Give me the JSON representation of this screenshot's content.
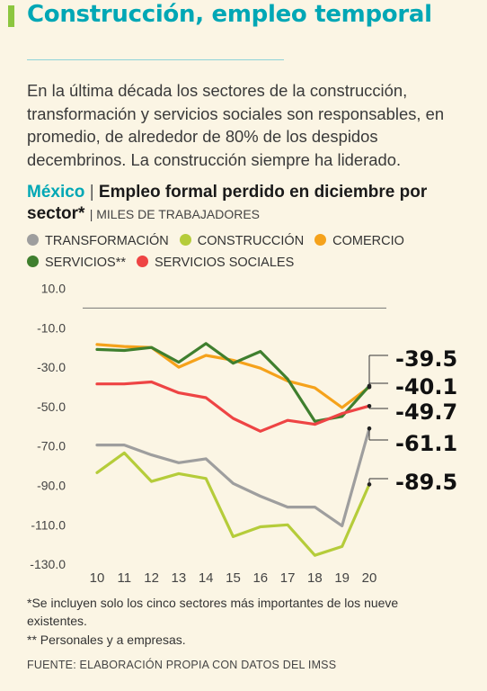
{
  "title": "Construcción, empleo temporal",
  "intro": "En la última década los sectores de la construcción, transformación y servicios sociales son responsables, en promedio, de alrededor de 80% de los despidos decembrinos. La construcción siempre ha liderado.",
  "chart_heading": {
    "country": "México",
    "separator": "|",
    "title": "Empleo formal perdido en diciembre por sector*",
    "units": "| MILES DE TRABAJADORES"
  },
  "chart_data": {
    "type": "line",
    "x": [
      "10",
      "11",
      "12",
      "13",
      "14",
      "15",
      "16",
      "17",
      "18",
      "19",
      "20"
    ],
    "ylim": [
      -130,
      10
    ],
    "yticks": [
      "10.0",
      "-10.0",
      "-30.0",
      "-50.0",
      "-70.0",
      "-90.0",
      "-110.0",
      "-130.0"
    ],
    "ytick_values": [
      10,
      -10,
      -30,
      -50,
      -70,
      -90,
      -110,
      -130
    ],
    "baseline_value": 0,
    "grid": false,
    "legend_position": "top",
    "series": [
      {
        "name": "TRANSFORMACIÓN",
        "color": "#9e9e9e",
        "values": [
          -69.5,
          -69.5,
          -74.5,
          -78.5,
          -76.5,
          -89,
          -95.5,
          -101,
          -101,
          -110.5,
          -61.1
        ]
      },
      {
        "name": "CONSTRUCCIÓN",
        "color": "#b5cc3a",
        "values": [
          -83.5,
          -73.5,
          -88,
          -84,
          -86.5,
          -116,
          -111,
          -110,
          -125.5,
          -121,
          -89.5
        ]
      },
      {
        "name": "COMERCIO",
        "color": "#f5a21b",
        "values": [
          -18.5,
          -19.5,
          -20,
          -30,
          -24,
          -26.5,
          -30.5,
          -37,
          -40.5,
          -50.5,
          -40.1
        ]
      },
      {
        "name": "SERVICIOS**",
        "color": "#3f7f2e",
        "values": [
          -21,
          -21.5,
          -20,
          -27.5,
          -18,
          -28,
          -22,
          -36,
          -57.5,
          -55,
          -39.5
        ]
      },
      {
        "name": "SERVICIOS SOCIALES",
        "color": "#ee4444",
        "values": [
          -38.5,
          -38.5,
          -37.5,
          -43,
          -45.5,
          -56,
          -62.5,
          -57,
          -59,
          -53.5,
          -49.7
        ]
      }
    ],
    "end_labels": [
      "-39.5",
      "-40.1",
      "-49.7",
      "-61.1",
      "-89.5"
    ]
  },
  "notes": [
    "*Se incluyen solo los cinco sectores más importantes de los nueve existentes.",
    "** Personales y a empresas."
  ],
  "source": "FUENTE: ELABORACIÓN PROPIA CON DATOS DEL IMSS"
}
